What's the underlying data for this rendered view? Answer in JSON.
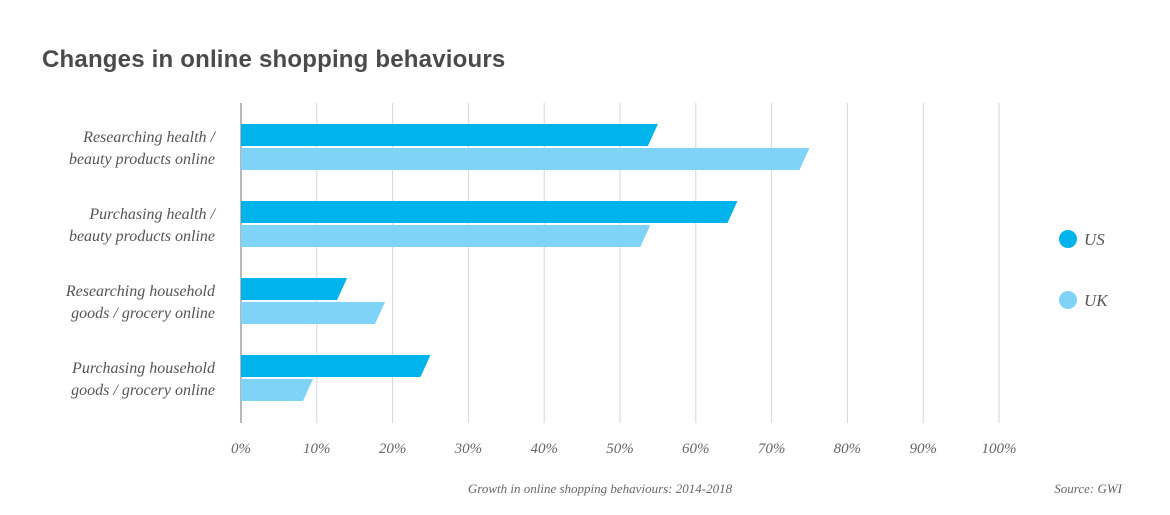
{
  "chart_data": {
    "type": "bar",
    "orientation": "horizontal",
    "title": "Changes in online shopping behaviours",
    "xlabel": "Growth in online shopping behaviours: 2014-2018",
    "source": "Source: GWI",
    "categories": [
      [
        "Researching health /",
        "beauty products online"
      ],
      [
        "Purchasing health /",
        "beauty products online"
      ],
      [
        "Researching household",
        "goods / grocery online"
      ],
      [
        "Purchasing household",
        "goods / grocery online"
      ]
    ],
    "series": [
      {
        "name": "US",
        "color": "#00b3ea",
        "values": [
          55,
          65.5,
          14,
          25
        ]
      },
      {
        "name": "UK",
        "color": "#7fd3f7",
        "values": [
          75,
          54,
          19,
          9.5
        ]
      }
    ],
    "xlim": [
      0,
      100
    ],
    "xticks": [
      0,
      10,
      20,
      30,
      40,
      50,
      60,
      70,
      80,
      90,
      100
    ],
    "xtick_labels": [
      "0%",
      "10%",
      "20%",
      "30%",
      "40%",
      "50%",
      "60%",
      "70%",
      "80%",
      "90%",
      "100%"
    ],
    "grid": true,
    "legend_position": "right"
  }
}
